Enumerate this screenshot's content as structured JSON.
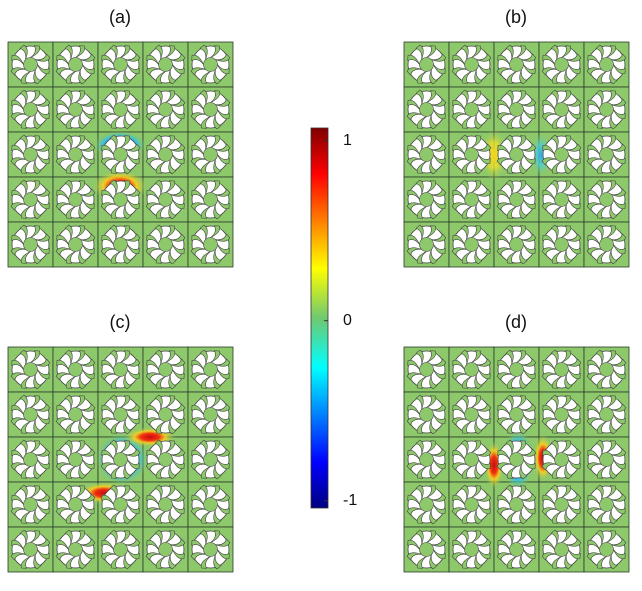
{
  "panels": [
    {
      "label": "(a)"
    },
    {
      "label": "(b)"
    },
    {
      "label": "(c)"
    },
    {
      "label": "(d)"
    }
  ],
  "colorbar": {
    "ylim": [
      -1.04,
      1.07
    ],
    "yticks": [
      -1,
      0,
      1
    ]
  }
}
